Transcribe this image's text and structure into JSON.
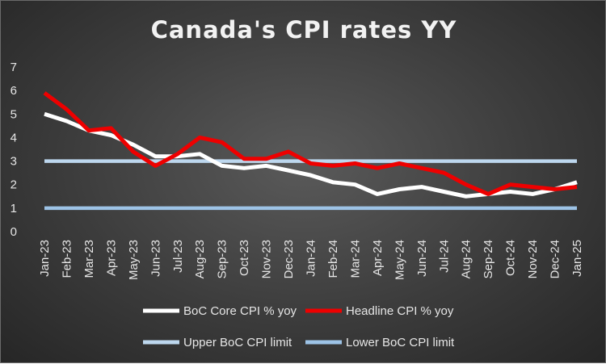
{
  "chart_data": {
    "type": "line",
    "title": "Canada's CPI rates YY",
    "categories": [
      "Jan-23",
      "Feb-23",
      "Mar-23",
      "Apr-23",
      "May-23",
      "Jun-23",
      "Jul-23",
      "Aug-23",
      "Sep-23",
      "Oct-23",
      "Nov-23",
      "Dec-23",
      "Jan-24",
      "Feb-24",
      "Mar-24",
      "Apr-24",
      "May-24",
      "Jun-24",
      "Jul-24",
      "Aug-24",
      "Sep-24",
      "Oct-24",
      "Nov-24",
      "Dec-24",
      "Jan-25"
    ],
    "ylim": [
      0,
      7
    ],
    "yticks": [
      0,
      1,
      2,
      3,
      4,
      5,
      6,
      7
    ],
    "grid": false,
    "legend_position": "bottom",
    "series": [
      {
        "name": "BoC Core CPI % yoy",
        "color": "#ffffff",
        "values": [
          5.0,
          4.7,
          4.3,
          4.1,
          3.7,
          3.2,
          3.2,
          3.3,
          2.8,
          2.7,
          2.8,
          2.6,
          2.4,
          2.1,
          2.0,
          1.6,
          1.8,
          1.9,
          1.7,
          1.5,
          1.6,
          1.7,
          1.6,
          1.8,
          2.1
        ]
      },
      {
        "name": "Headline CPI % yoy",
        "color": "#ee0000",
        "values": [
          5.9,
          5.2,
          4.3,
          4.4,
          3.4,
          2.8,
          3.3,
          4.0,
          3.8,
          3.1,
          3.1,
          3.4,
          2.9,
          2.8,
          2.9,
          2.7,
          2.9,
          2.7,
          2.5,
          2.0,
          1.6,
          2.0,
          1.9,
          1.8,
          1.9
        ]
      },
      {
        "name": "Upper BoC CPI limit",
        "color": "#bdd7ee",
        "values": [
          3,
          3,
          3,
          3,
          3,
          3,
          3,
          3,
          3,
          3,
          3,
          3,
          3,
          3,
          3,
          3,
          3,
          3,
          3,
          3,
          3,
          3,
          3,
          3,
          3
        ]
      },
      {
        "name": "Lower BoC CPI limit",
        "color": "#9dc3e6",
        "values": [
          1,
          1,
          1,
          1,
          1,
          1,
          1,
          1,
          1,
          1,
          1,
          1,
          1,
          1,
          1,
          1,
          1,
          1,
          1,
          1,
          1,
          1,
          1,
          1,
          1
        ]
      }
    ]
  }
}
